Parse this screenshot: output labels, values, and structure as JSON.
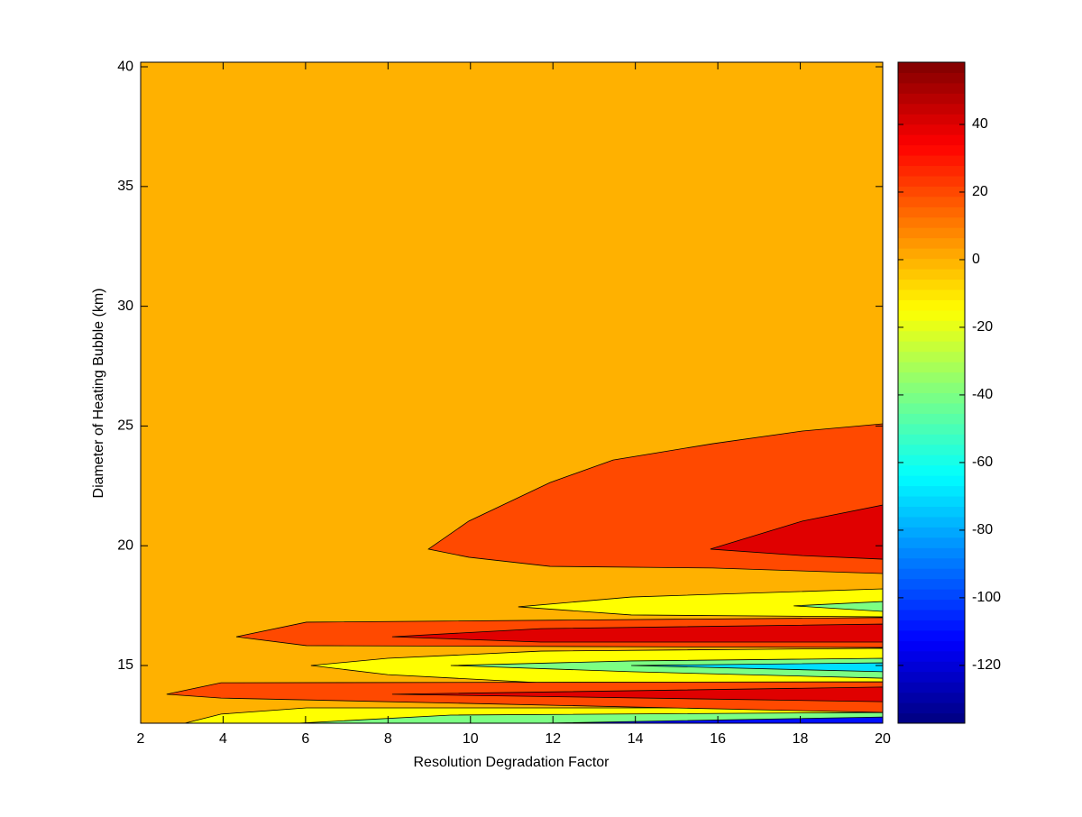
{
  "chart_data": {
    "type": "contour",
    "xlabel": "Resolution Degradation Factor",
    "ylabel": "Diameter of Heating Bubble (km)",
    "xlim": [
      2,
      20
    ],
    "xticks": [
      2,
      4,
      6,
      8,
      10,
      12,
      14,
      16,
      18,
      20
    ],
    "ylim": [
      12.59,
      40.19
    ],
    "yticks": [
      15,
      20,
      25,
      30,
      35,
      40
    ],
    "colormap": "jet",
    "clim": [
      -137.1,
      58.4
    ],
    "cticks": [
      -120,
      -100,
      -80,
      -60,
      -40,
      -20,
      0,
      20,
      40
    ],
    "background_level": 0,
    "regions": [
      {
        "level": 20,
        "x": [
          8.98,
          9.96,
          11.93,
          13.46,
          15.87,
          18.05,
          20,
          20,
          18.05,
          15.87,
          11.93,
          9.96
        ],
        "y": [
          19.86,
          21.03,
          22.64,
          23.58,
          24.26,
          24.79,
          25.09,
          18.84,
          18.95,
          19.07,
          19.14,
          19.52
        ]
      },
      {
        "level": 40,
        "x": [
          15.82,
          18.05,
          20,
          20,
          18.05
        ],
        "y": [
          19.86,
          21.03,
          21.7,
          19.44,
          19.59
        ]
      },
      {
        "level": 20,
        "x": [
          4.32,
          6.02,
          20,
          20,
          6.02
        ],
        "y": [
          16.2,
          16.81,
          17.0,
          15.75,
          15.83
        ]
      },
      {
        "level": 40,
        "x": [
          8.1,
          11.71,
          20,
          20,
          11.71
        ],
        "y": [
          16.2,
          16.54,
          16.73,
          15.98,
          15.98
        ]
      },
      {
        "level": -15,
        "x": [
          11.16,
          13.9,
          20,
          20,
          13.9
        ],
        "y": [
          17.45,
          17.86,
          18.2,
          17.03,
          17.11
        ]
      },
      {
        "level": -40,
        "x": [
          17.84,
          20,
          20
        ],
        "y": [
          17.49,
          17.67,
          17.26
        ]
      },
      {
        "level": -15,
        "x": [
          6.13,
          7.99,
          11.71,
          20,
          20,
          11.71,
          7.99
        ],
        "y": [
          15.0,
          15.3,
          15.6,
          15.72,
          14.17,
          14.28,
          14.62
        ]
      },
      {
        "level": -40,
        "x": [
          9.52,
          13.9,
          20,
          20,
          13.9
        ],
        "y": [
          15.0,
          15.19,
          15.3,
          14.47,
          14.74
        ]
      },
      {
        "level": -70,
        "x": [
          13.9,
          20,
          20
        ],
        "y": [
          15.0,
          15.11,
          14.74
        ]
      },
      {
        "level": -15,
        "x": [
          3.07,
          3.95,
          6.02,
          11.71,
          20,
          20
        ],
        "y": [
          12.59,
          12.97,
          13.23,
          13.23,
          13.23,
          12.59
        ]
      },
      {
        "level": -40,
        "x": [
          5.81,
          9.52,
          20,
          20
        ],
        "y": [
          12.59,
          12.93,
          13.04,
          12.59
        ]
      },
      {
        "level": -110,
        "x": [
          11.71,
          20,
          20
        ],
        "y": [
          12.59,
          12.85,
          12.59
        ]
      },
      {
        "level": 20,
        "x": [
          2.63,
          3.95,
          20,
          20,
          3.95
        ],
        "y": [
          13.8,
          14.28,
          14.32,
          13.04,
          13.64
        ]
      },
      {
        "level": 40,
        "x": [
          8.1,
          20,
          20
        ],
        "y": [
          13.8,
          14.1,
          13.49
        ]
      }
    ]
  }
}
